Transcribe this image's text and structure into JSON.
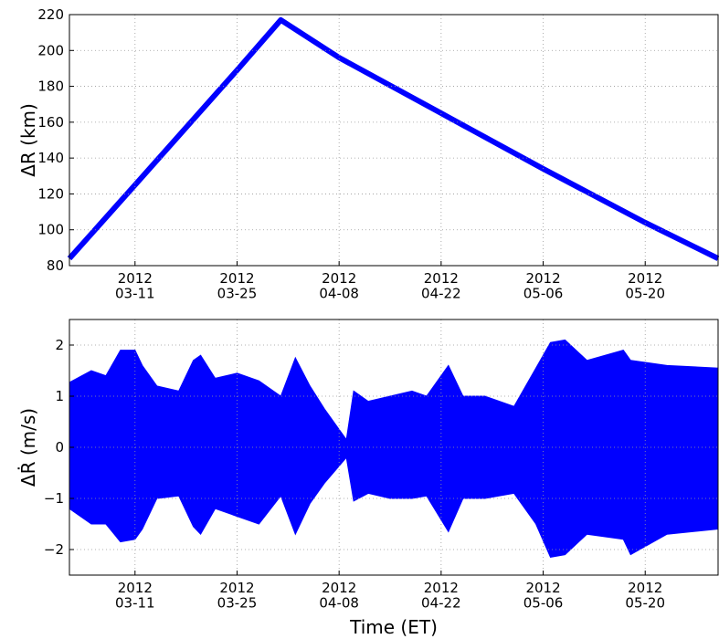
{
  "chart_data": [
    {
      "type": "line",
      "ylabel": "ΔR (km)",
      "color": "#0000ff",
      "grid": true,
      "x": [
        "2012-03-02",
        "2012-03-11",
        "2012-03-25",
        "2012-03-31",
        "2012-04-08",
        "2012-04-22",
        "2012-05-06",
        "2012-05-20",
        "2012-05-30"
      ],
      "values": [
        84,
        125,
        189,
        217,
        196,
        165,
        134,
        104,
        84
      ],
      "xlim": [
        "2012-03-02",
        "2012-05-30"
      ],
      "xticks": [
        {
          "value": "2012-03-11",
          "label": "2012\n03-11"
        },
        {
          "value": "2012-03-25",
          "label": "2012\n03-25"
        },
        {
          "value": "2012-04-08",
          "label": "2012\n04-08"
        },
        {
          "value": "2012-04-22",
          "label": "2012\n04-22"
        },
        {
          "value": "2012-05-06",
          "label": "2012\n05-06"
        },
        {
          "value": "2012-05-20",
          "label": "2012\n05-20"
        }
      ],
      "ylim": [
        80,
        220
      ],
      "yticks": [
        80,
        100,
        120,
        140,
        160,
        180,
        200,
        220
      ]
    },
    {
      "type": "range",
      "ylabel": "ΔṘ (m/s)",
      "xlabel": "Time (ET)",
      "color": "#0000ff",
      "grid": true,
      "x": [
        "2012-03-02",
        "2012-03-05",
        "2012-03-07",
        "2012-03-09",
        "2012-03-11",
        "2012-03-12",
        "2012-03-14",
        "2012-03-17",
        "2012-03-19",
        "2012-03-20",
        "2012-03-22",
        "2012-03-25",
        "2012-03-28",
        "2012-03-31",
        "2012-04-02",
        "2012-04-04",
        "2012-04-06",
        "2012-04-09",
        "2012-04-10",
        "2012-04-12",
        "2012-04-15",
        "2012-04-18",
        "2012-04-20",
        "2012-04-23",
        "2012-04-25",
        "2012-04-28",
        "2012-05-02",
        "2012-05-05",
        "2012-05-07",
        "2012-05-09",
        "2012-05-12",
        "2012-05-17",
        "2012-05-18",
        "2012-05-23",
        "2012-05-30"
      ],
      "high": [
        1.27,
        1.5,
        1.4,
        1.9,
        1.9,
        1.6,
        1.2,
        1.1,
        1.7,
        1.8,
        1.35,
        1.45,
        1.3,
        1.0,
        1.75,
        1.2,
        0.75,
        0.15,
        1.1,
        0.9,
        1.0,
        1.1,
        1.0,
        1.6,
        1.0,
        1.0,
        0.8,
        1.55,
        2.05,
        2.1,
        1.7,
        1.9,
        1.7,
        1.6,
        1.55
      ],
      "low": [
        -1.2,
        -1.5,
        -1.5,
        -1.85,
        -1.8,
        -1.6,
        -1.0,
        -0.95,
        -1.55,
        -1.7,
        -1.2,
        -1.35,
        -1.5,
        -0.95,
        -1.7,
        -1.1,
        -0.7,
        -0.2,
        -1.05,
        -0.9,
        -1.0,
        -1.0,
        -0.95,
        -1.65,
        -1.0,
        -1.0,
        -0.9,
        -1.5,
        -2.15,
        -2.1,
        -1.7,
        -1.8,
        -2.1,
        -1.7,
        -1.6
      ],
      "xlim": [
        "2012-03-02",
        "2012-05-30"
      ],
      "xticks": [
        {
          "value": "2012-03-11",
          "label": "2012\n03-11"
        },
        {
          "value": "2012-03-25",
          "label": "2012\n03-25"
        },
        {
          "value": "2012-04-08",
          "label": "2012\n04-08"
        },
        {
          "value": "2012-04-22",
          "label": "2012\n04-22"
        },
        {
          "value": "2012-05-06",
          "label": "2012\n05-06"
        },
        {
          "value": "2012-05-20",
          "label": "2012\n05-20"
        }
      ],
      "ylim": [
        -2.5,
        2.5
      ],
      "yticks": [
        {
          "value": -2,
          "label": "−2"
        },
        {
          "value": -1,
          "label": "−1"
        },
        0,
        1,
        2
      ]
    }
  ]
}
